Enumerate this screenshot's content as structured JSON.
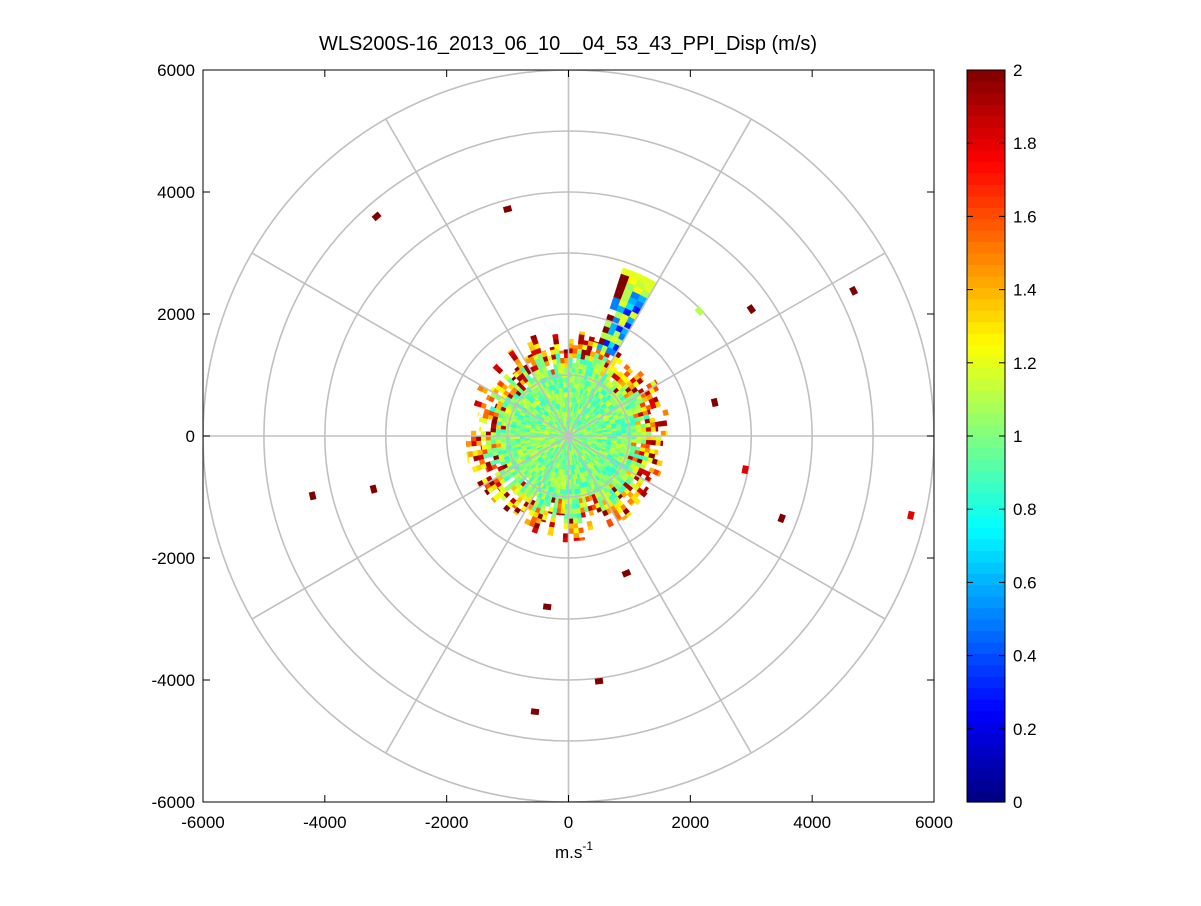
{
  "chart_data": {
    "type": "heatmap",
    "subtype": "polar-ppi-scan",
    "title": "WLS200S-16_2013_06_10__04_53_43_PPI_Disp (m/s)",
    "xlabel_base": "m.s",
    "xlabel_exp": "-1",
    "ylabel": "",
    "xlim": [
      -6000,
      6000
    ],
    "ylim": [
      -6000,
      6000
    ],
    "xticks": [
      -6000,
      -4000,
      -2000,
      0,
      2000,
      4000,
      6000
    ],
    "yticks": [
      -6000,
      -4000,
      -2000,
      0,
      2000,
      4000,
      6000
    ],
    "xtick_labels": [
      "-6000",
      "-4000",
      "-2000",
      "0",
      "2000",
      "4000",
      "6000"
    ],
    "ytick_labels": [
      "-6000",
      "-4000",
      "-2000",
      "0",
      "2000",
      "4000",
      "6000"
    ],
    "polar_grid": {
      "ring_radii": [
        1000,
        2000,
        3000,
        4000,
        5000,
        6000
      ],
      "spoke_angles_deg": [
        0,
        30,
        60,
        90,
        120,
        150,
        180,
        210,
        240,
        270,
        300,
        330
      ]
    },
    "colorbar": {
      "colormap": "jet",
      "clim": [
        0,
        2
      ],
      "ticks": [
        0,
        0.2,
        0.4,
        0.6,
        0.8,
        1,
        1.2,
        1.4,
        1.6,
        1.8,
        2
      ],
      "tick_labels": [
        "0",
        "0.2",
        "0.4",
        "0.6",
        "0.8",
        "1",
        "1.2",
        "1.4",
        "1.6",
        "1.8",
        "2"
      ]
    },
    "core_region": {
      "description_value": "dense returns near 1.0 m/s within ~1800 m of the lidar",
      "max_range": 1800,
      "typical_value": 1.0
    },
    "sector_band": {
      "azimuth_start_deg": 18,
      "azimuth_end_deg": 30,
      "range_start": 1500,
      "range_end": 2900,
      "values": [
        0.5,
        0.3,
        0.7,
        1.1,
        1.2,
        0.6
      ]
    },
    "isolated_returns": [
      {
        "x": -3150,
        "y": 3600,
        "value": 2.0
      },
      {
        "x": -1000,
        "y": 3720,
        "value": 2.0
      },
      {
        "x": 3000,
        "y": 2080,
        "value": 2.0
      },
      {
        "x": 4680,
        "y": 2380,
        "value": 2.0
      },
      {
        "x": 2400,
        "y": 550,
        "value": 2.0
      },
      {
        "x": 2900,
        "y": -550,
        "value": 1.8
      },
      {
        "x": 5620,
        "y": -1300,
        "value": 1.8
      },
      {
        "x": 3500,
        "y": -1350,
        "value": 2.0
      },
      {
        "x": -4200,
        "y": -980,
        "value": 2.0
      },
      {
        "x": -3200,
        "y": -870,
        "value": 2.0
      },
      {
        "x": 950,
        "y": -2250,
        "value": 2.0
      },
      {
        "x": -350,
        "y": -2800,
        "value": 2.0
      },
      {
        "x": 500,
        "y": -4020,
        "value": 2.0
      },
      {
        "x": -550,
        "y": -4520,
        "value": 2.0
      },
      {
        "x": 2150,
        "y": 2050,
        "value": 1.1
      }
    ]
  }
}
